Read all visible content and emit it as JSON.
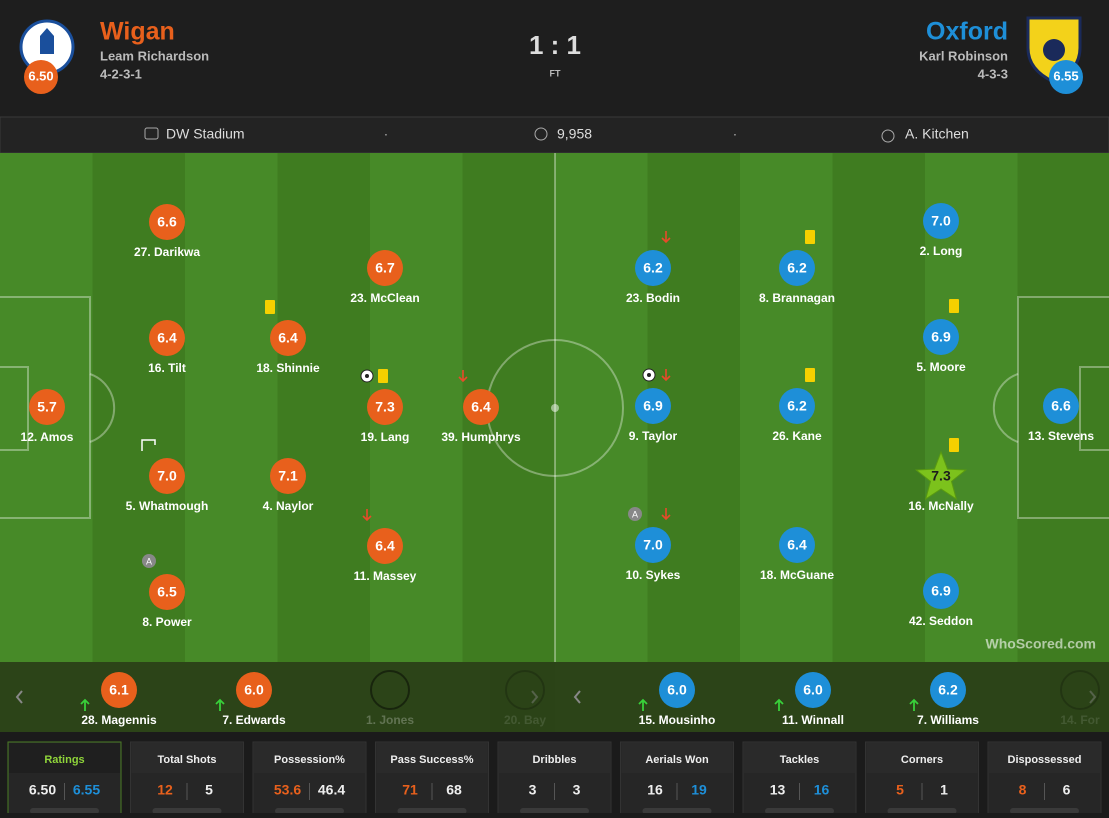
{
  "header": {
    "home": {
      "name": "Wigan",
      "manager": "Leam Richardson",
      "formation": "4-2-3-1",
      "rating": "6.50"
    },
    "away": {
      "name": "Oxford",
      "manager": "Karl Robinson",
      "formation": "4-3-3",
      "rating": "6.55"
    },
    "score": "1 : 1",
    "status": "FT"
  },
  "info": {
    "stadium": "DW Stadium",
    "separator": "·",
    "attendance": "9,958",
    "referee": "A. Kitchen"
  },
  "home_players": [
    {
      "label": "27. Darikwa",
      "rating": "6.6"
    },
    {
      "label": "16. Tilt",
      "rating": "6.4"
    },
    {
      "label": "5. Whatmough",
      "rating": "7.0"
    },
    {
      "label": "8. Power",
      "rating": "6.5",
      "badge": "A"
    },
    {
      "label": "12. Amos",
      "rating": "5.7"
    },
    {
      "label": "18. Shinnie",
      "rating": "6.4"
    },
    {
      "label": "4. Naylor",
      "rating": "7.1"
    },
    {
      "label": "23. McClean",
      "rating": "6.7"
    },
    {
      "label": "19. Lang",
      "rating": "7.3"
    },
    {
      "label": "11. Massey",
      "rating": "6.4"
    },
    {
      "label": "39. Humphrys",
      "rating": "6.4"
    }
  ],
  "away_players": [
    {
      "label": "2. Long",
      "rating": "7.0"
    },
    {
      "label": "5. Moore",
      "rating": "6.9"
    },
    {
      "label": "16. McNally",
      "rating": "7.3"
    },
    {
      "label": "42. Seddon",
      "rating": "6.9"
    },
    {
      "label": "13. Stevens",
      "rating": "6.6"
    },
    {
      "label": "8. Brannagan",
      "rating": "6.2"
    },
    {
      "label": "26. Kane",
      "rating": "6.2"
    },
    {
      "label": "18. McGuane",
      "rating": "6.4"
    },
    {
      "label": "23. Bodin",
      "rating": "6.2"
    },
    {
      "label": "9. Taylor",
      "rating": "6.9"
    },
    {
      "label": "10. Sykes",
      "rating": "7.0",
      "badge": "A"
    }
  ],
  "watermark": "WhoScored.com",
  "home_subs": [
    {
      "label": "28. Magennis",
      "rating": "6.1"
    },
    {
      "label": "7. Edwards",
      "rating": "6.0"
    },
    {
      "label": "1. Jones"
    },
    {
      "label": "20. Bay"
    }
  ],
  "away_subs": [
    {
      "label": "15. Mousinho",
      "rating": "6.0"
    },
    {
      "label": "11. Winnall",
      "rating": "6.0"
    },
    {
      "label": "7. Williams",
      "rating": "6.2"
    },
    {
      "label": "14. For"
    }
  ],
  "stats": [
    {
      "title": "Ratings",
      "home": "6.50",
      "away": "6.55"
    },
    {
      "title": "Total Shots",
      "home": "12",
      "away": "5"
    },
    {
      "title": "Possession%",
      "home": "53.6",
      "away": "46.4"
    },
    {
      "title": "Pass Success%",
      "home": "71",
      "away": "68"
    },
    {
      "title": "Dribbles",
      "home": "3",
      "away": "3"
    },
    {
      "title": "Aerials Won",
      "home": "16",
      "away": "19"
    },
    {
      "title": "Tackles",
      "home": "13",
      "away": "16"
    },
    {
      "title": "Corners",
      "home": "5",
      "away": "1"
    },
    {
      "title": "Dispossessed",
      "home": "8",
      "away": "6"
    }
  ]
}
